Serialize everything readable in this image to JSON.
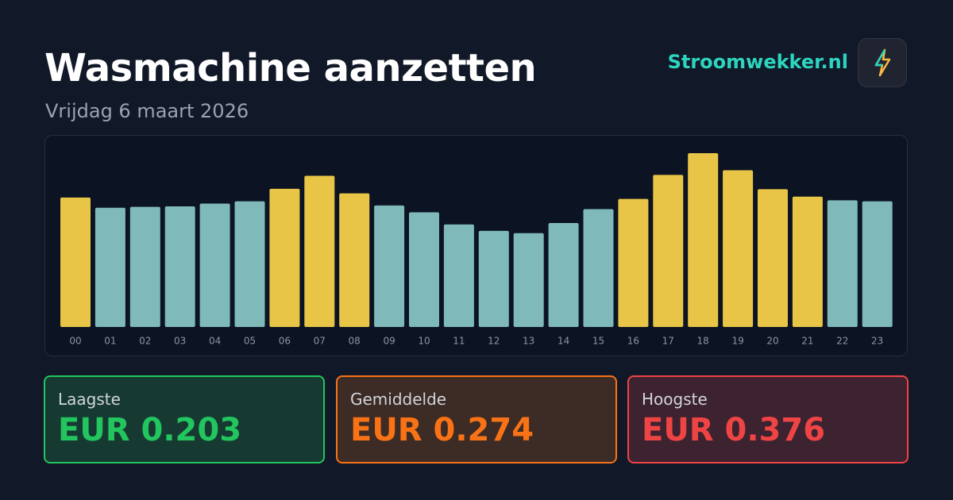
{
  "header": {
    "title": "Wasmachine aanzetten",
    "subtitle": "Vrijdag 6 maart 2026",
    "brand": "Stroomwekker.nl"
  },
  "chart_data": {
    "type": "bar",
    "categories": [
      "00",
      "01",
      "02",
      "03",
      "04",
      "05",
      "06",
      "07",
      "08",
      "09",
      "10",
      "11",
      "12",
      "13",
      "14",
      "15",
      "16",
      "17",
      "18",
      "19",
      "20",
      "21",
      "22",
      "23"
    ],
    "values": [
      0.28,
      0.258,
      0.26,
      0.261,
      0.267,
      0.272,
      0.299,
      0.327,
      0.289,
      0.263,
      0.248,
      0.222,
      0.208,
      0.203,
      0.225,
      0.255,
      0.277,
      0.329,
      0.376,
      0.339,
      0.298,
      0.282,
      0.274,
      0.272
    ],
    "colors": [
      "#e8c547",
      "#7fb9b9",
      "#7fb9b9",
      "#7fb9b9",
      "#7fb9b9",
      "#7fb9b9",
      "#e8c547",
      "#e8c547",
      "#e8c547",
      "#7fb9b9",
      "#7fb9b9",
      "#7fb9b9",
      "#7fb9b9",
      "#7fb9b9",
      "#7fb9b9",
      "#7fb9b9",
      "#e8c547",
      "#e8c547",
      "#e8c547",
      "#e8c547",
      "#e8c547",
      "#e8c547",
      "#7fb9b9",
      "#7fb9b9"
    ]
  },
  "cards": [
    {
      "label": "Laagste",
      "value": "EUR 0.203"
    },
    {
      "label": "Gemiddelde",
      "value": "EUR 0.274"
    },
    {
      "label": "Hoogste",
      "value": "EUR 0.376"
    }
  ]
}
